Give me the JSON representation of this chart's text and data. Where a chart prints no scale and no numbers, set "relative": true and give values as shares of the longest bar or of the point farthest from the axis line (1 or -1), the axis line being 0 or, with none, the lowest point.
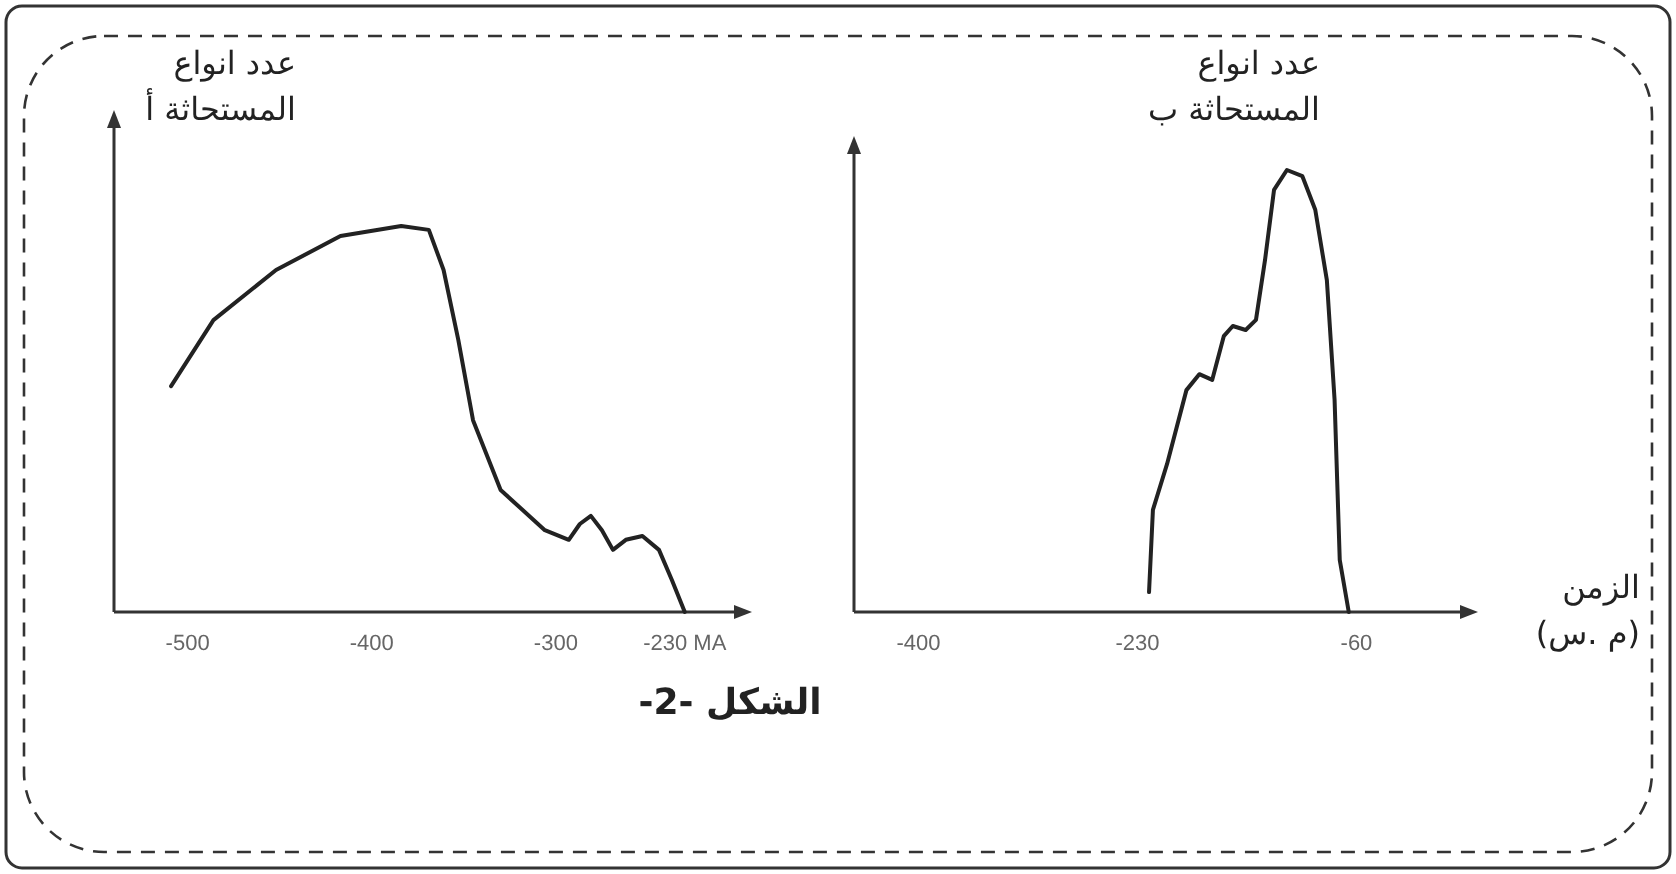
{
  "chart_data": [
    {
      "type": "line",
      "relative": true,
      "ylabel": "عدد انواع المستحاثة أ",
      "color": "#222222",
      "xlim": [
        -540,
        -200
      ],
      "xticks": [
        -500,
        -400,
        -300,
        {
          "value": -230,
          "label": "-230 MA"
        }
      ],
      "x": [
        -509,
        -486,
        -452,
        -417,
        -384,
        -369,
        -361,
        -353,
        -345,
        -330,
        -306,
        -293,
        -287,
        -281,
        -275,
        -269,
        -262,
        -253,
        -244,
        -237,
        -230
      ],
      "values": [
        0.585,
        0.756,
        0.886,
        0.974,
        1,
        0.99,
        0.886,
        0.705,
        0.497,
        0.316,
        0.212,
        0.187,
        0.228,
        0.249,
        0.212,
        0.161,
        0.187,
        0.197,
        0.161,
        0.083,
        0
      ],
      "annotations": [
        "الشكل -2-"
      ]
    },
    {
      "type": "line",
      "relative": true,
      "ylabel": "عدد انواع المستحاثة ب",
      "xlabel": "الزمن (م .س)",
      "color": "#222222",
      "xlim": [
        -450,
        25
      ],
      "xticks": [
        -400,
        -230,
        -60
      ],
      "x": [
        -221,
        -218,
        -207,
        -192,
        -182,
        -172,
        -163,
        -156,
        -146,
        -138,
        -131,
        -124,
        -114,
        -102,
        -92,
        -83,
        -77,
        -73,
        -66
      ],
      "values": [
        0.045,
        0.231,
        0.335,
        0.502,
        0.538,
        0.525,
        0.624,
        0.647,
        0.638,
        0.661,
        0.796,
        0.955,
        1,
        0.986,
        0.91,
        0.751,
        0.48,
        0.118,
        0
      ]
    }
  ]
}
